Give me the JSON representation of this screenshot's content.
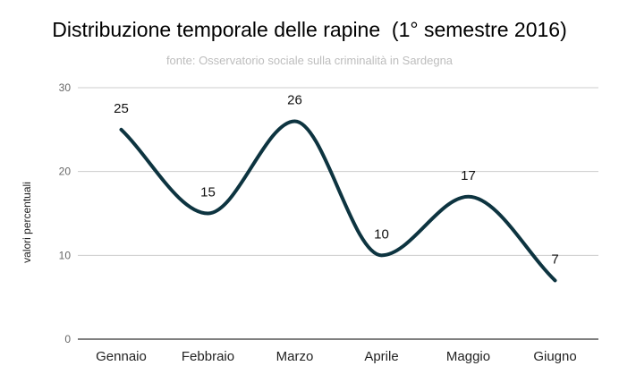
{
  "chart_data": {
    "type": "line",
    "title": "Distribuzione temporale delle rapine  (1° semestre 2016)",
    "subtitle": "fonte: Osservatorio sociale sulla criminalità in Sardegna",
    "xlabel": "",
    "ylabel": "valori percentuali",
    "categories": [
      "Gennaio",
      "Febbraio",
      "Marzo",
      "Aprile",
      "Maggio",
      "Giugno"
    ],
    "series": [
      {
        "values": [
          25,
          15,
          26,
          10,
          17,
          7
        ]
      }
    ],
    "data_labels": [
      "25",
      "15",
      "26",
      "10",
      "17",
      "7"
    ],
    "y_ticks": [
      "0",
      "10",
      "20",
      "30"
    ],
    "ylim": [
      0,
      30
    ],
    "grid": true,
    "legend": "none",
    "line_color": "#0d3440",
    "smooth": true
  }
}
